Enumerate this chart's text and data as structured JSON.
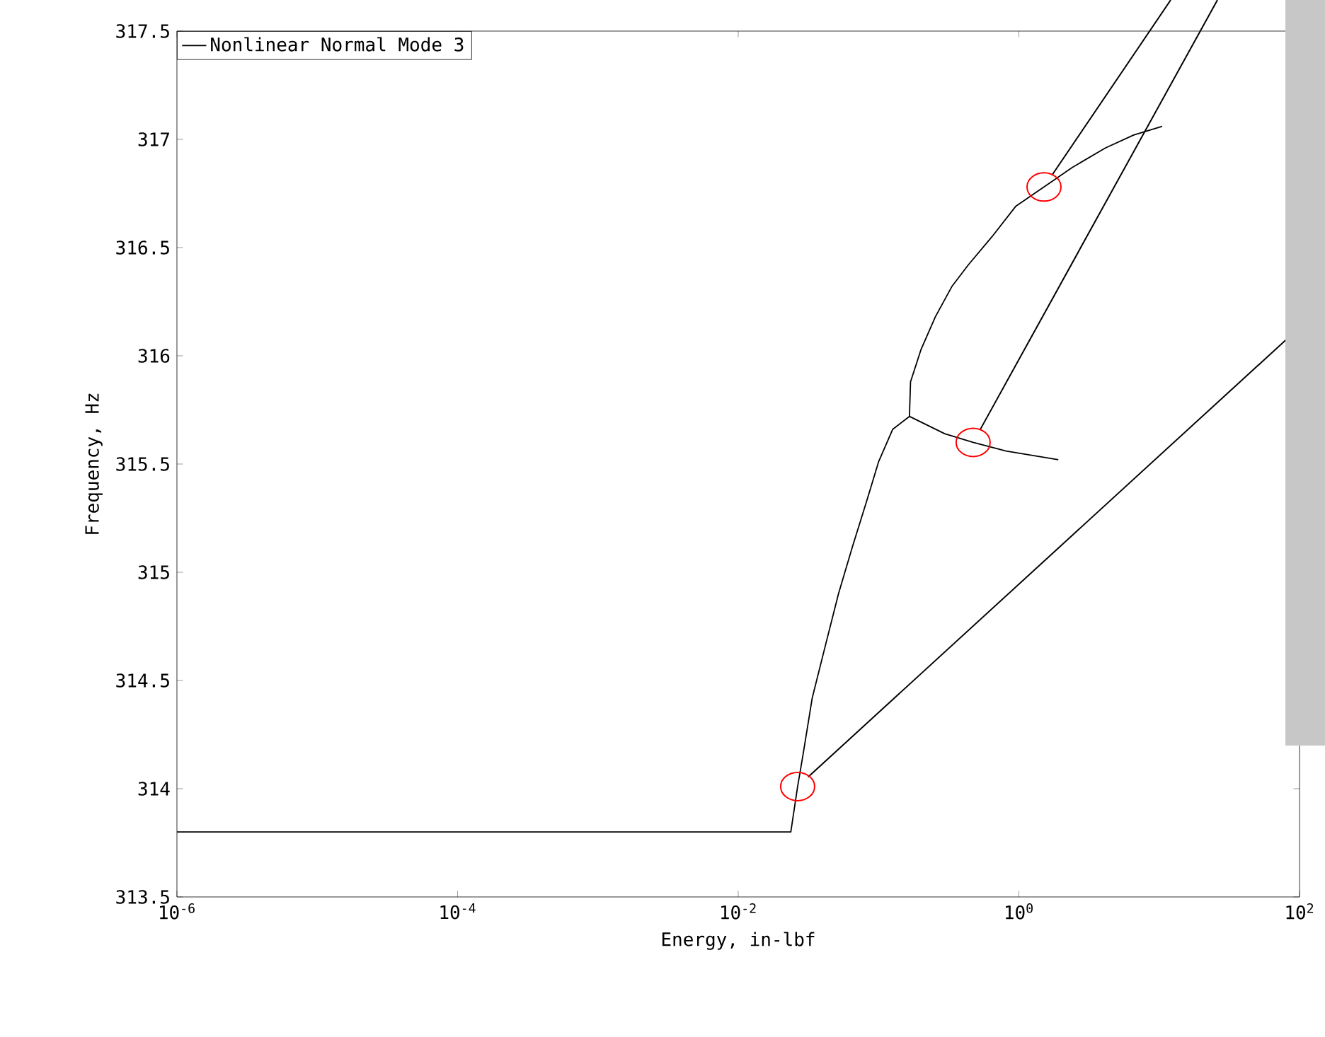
{
  "chart_data": {
    "type": "line",
    "xlabel": "Energy, in-lbf",
    "ylabel": "Frequency, Hz",
    "log": "x",
    "xlim": [
      1e-06,
      100
    ],
    "xticks": [
      {
        "value": 1e-06,
        "label": "10$^{-6}$"
      },
      {
        "value": 0.0001,
        "label": "10$^{-4}$"
      },
      {
        "value": 0.01,
        "label": "10$^{-2}$"
      },
      {
        "value": 1,
        "label": "10$^{0}$"
      },
      {
        "value": 100,
        "label": "10$^{2}$"
      }
    ],
    "ylim": [
      313.5,
      317.5
    ],
    "yticks": [
      313.5,
      314,
      314.5,
      315,
      315.5,
      316,
      316.5,
      317,
      317.5
    ],
    "legend": "top left",
    "marker": "none",
    "series": [
      {
        "name": "Nonlinear Normal Mode 3",
        "color": "#000000",
        "x": [
          1e-06,
          0.0237,
          0.0265,
          0.029,
          0.0337,
          0.041,
          0.0518,
          0.0653,
          0.0824,
          0.1,
          0.126,
          0.166,
          0.169,
          0.201,
          0.254,
          0.333,
          0.436,
          0.643,
          0.948,
          1.51,
          2.4,
          4.13,
          6.58,
          10.5
        ],
        "values": [
          313.8,
          313.8,
          314.01,
          314.16,
          314.42,
          314.64,
          314.9,
          315.12,
          315.33,
          315.51,
          315.66,
          315.72,
          315.88,
          316.03,
          316.18,
          316.32,
          316.42,
          316.55,
          316.69,
          316.78,
          316.87,
          316.96,
          317.02,
          317.06
        ]
      },
      {
        "color": "#000000",
        "x": [
          0.166,
          0.296,
          0.472,
          0.811,
          1.91
        ],
        "values": [
          315.72,
          315.64,
          315.6,
          315.56,
          315.52
        ]
      }
    ]
  }
}
